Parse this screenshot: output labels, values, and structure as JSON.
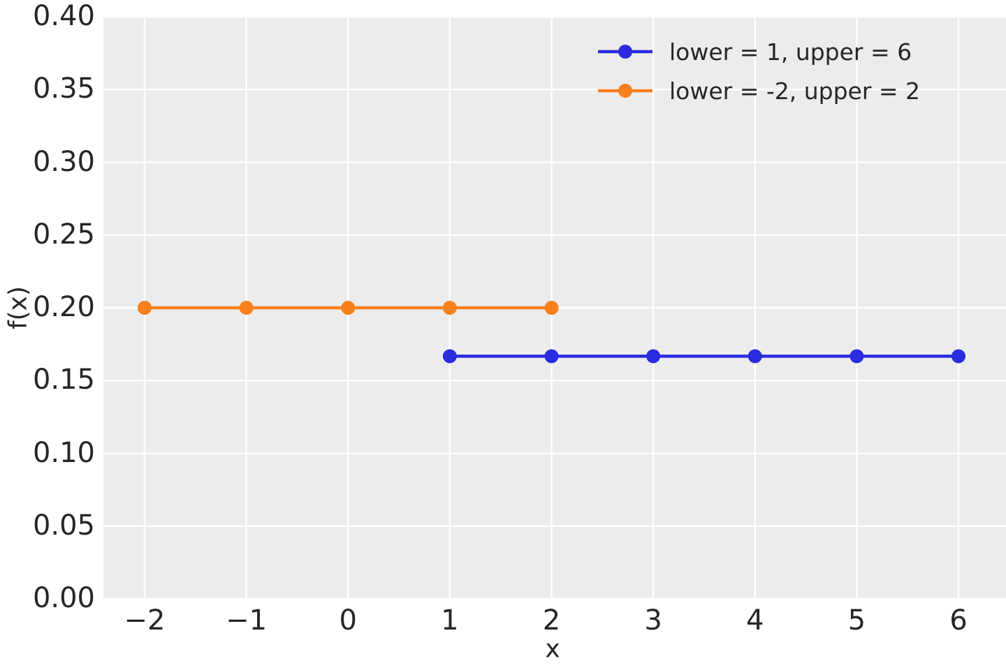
{
  "figure": {
    "background": "#ffffff",
    "plot_background": "#ececec",
    "grid_color": "#ffffff",
    "text_color": "#262626"
  },
  "chart_data": {
    "type": "line",
    "title": "",
    "xlabel": "x",
    "ylabel": "f(x)",
    "xlim": [
      -2.405,
      6.467
    ],
    "ylim": [
      0,
      0.4
    ],
    "grid": true,
    "legend_position": "upper right",
    "x_ticks": {
      "values": [
        -2,
        -1,
        0,
        1,
        2,
        3,
        4,
        5,
        6
      ],
      "labels": [
        "−2",
        "−1",
        "0",
        "1",
        "2",
        "3",
        "4",
        "5",
        "6"
      ]
    },
    "y_ticks": {
      "values": [
        0,
        0.05,
        0.1,
        0.15,
        0.2,
        0.25,
        0.3,
        0.35,
        0.4
      ],
      "labels": [
        "0.00",
        "0.05",
        "0.10",
        "0.15",
        "0.20",
        "0.25",
        "0.30",
        "0.35",
        "0.40"
      ]
    },
    "series": [
      {
        "name": "lower = 1, upper = 6",
        "color": "#2b2be0",
        "marker": "circle",
        "x": [
          1,
          2,
          3,
          4,
          5,
          6
        ],
        "y": [
          0.1667,
          0.1667,
          0.1667,
          0.1667,
          0.1667,
          0.1667
        ]
      },
      {
        "name": "lower = -2, upper = 2",
        "color": "#f7801d",
        "marker": "circle",
        "x": [
          -2,
          -1,
          0,
          1,
          2
        ],
        "y": [
          0.2,
          0.2,
          0.2,
          0.2,
          0.2
        ]
      }
    ]
  }
}
